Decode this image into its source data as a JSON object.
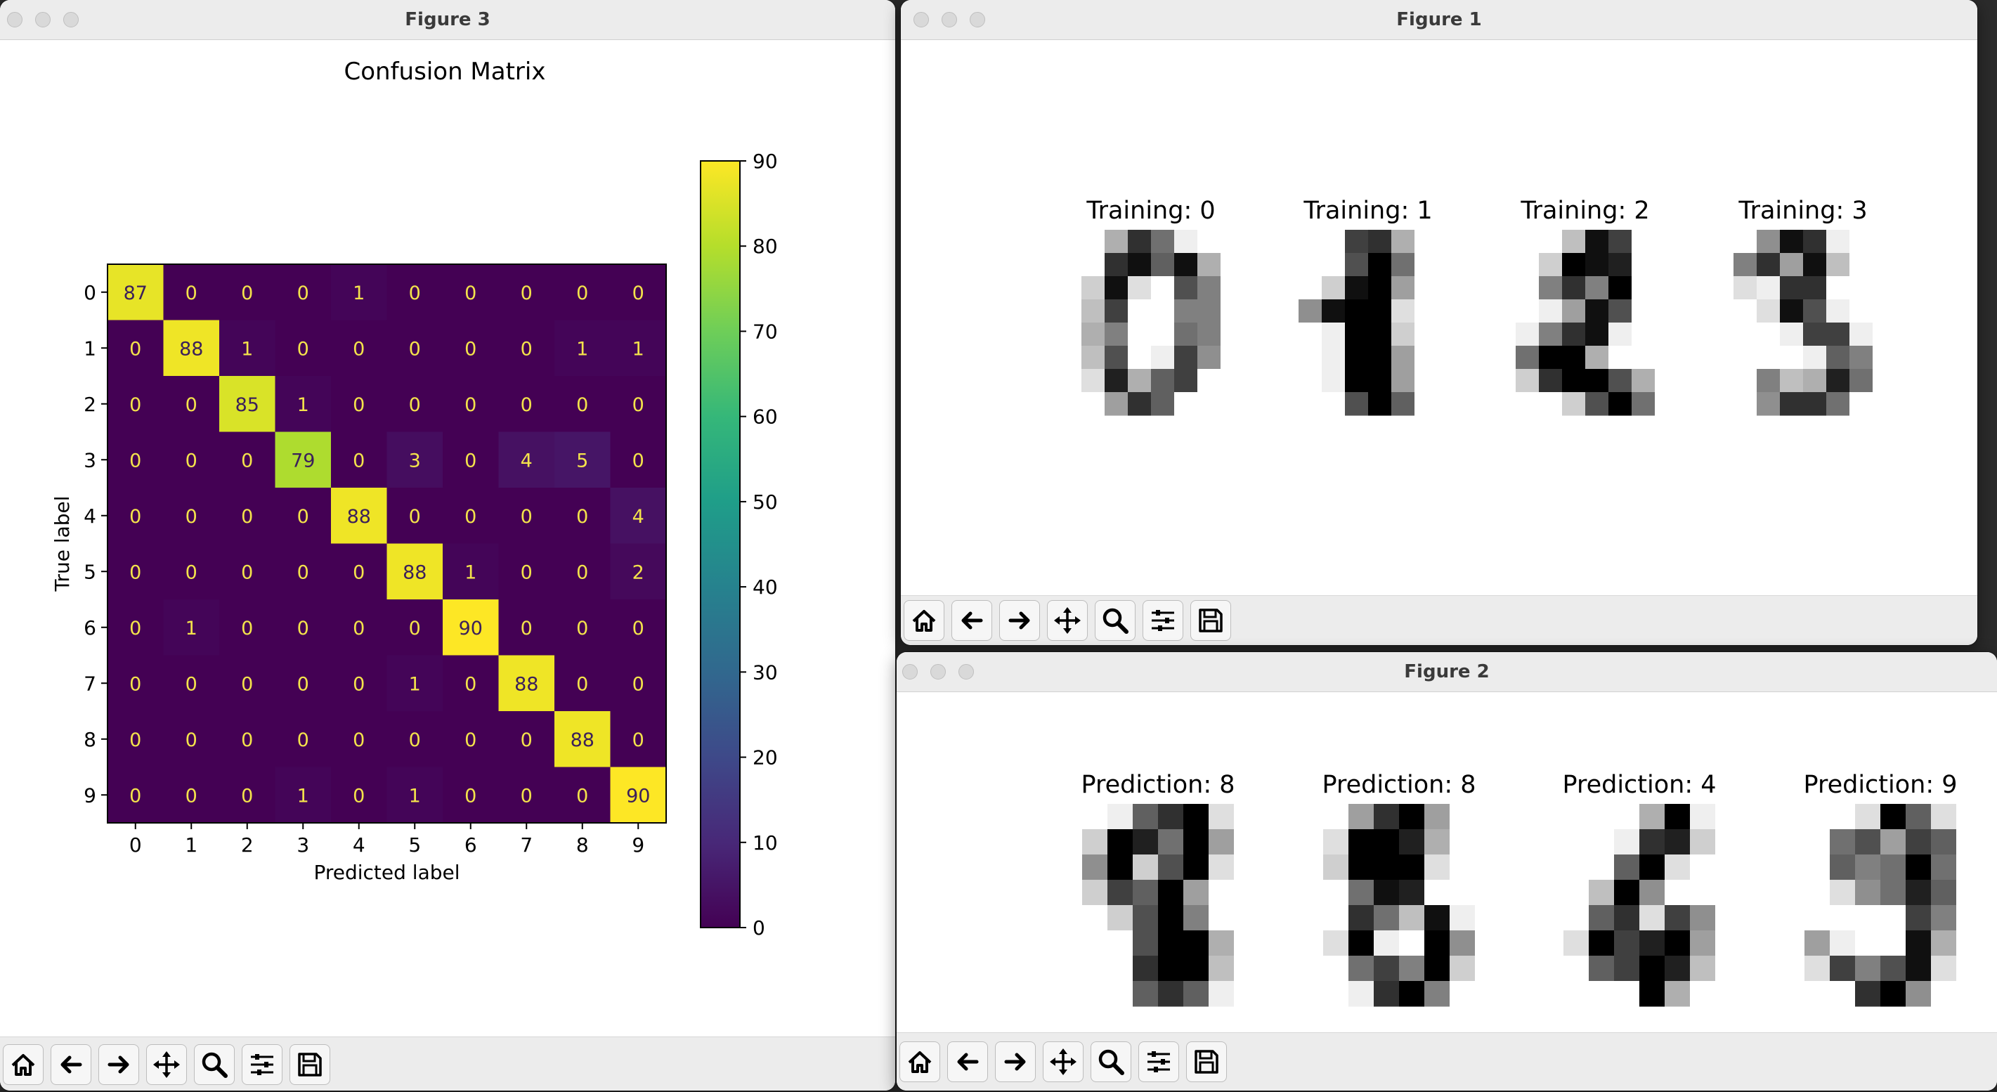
{
  "windows": {
    "fig3": {
      "title": "Figure 3"
    },
    "fig1": {
      "title": "Figure 1"
    },
    "fig2": {
      "title": "Figure 2"
    }
  },
  "toolbar_icons": [
    "home-icon",
    "back-arrow-icon",
    "forward-arrow-icon",
    "pan-move-icon",
    "zoom-icon",
    "configure-subplots-icon",
    "save-icon"
  ],
  "chart_data": {
    "type": "heatmap",
    "title": "Confusion Matrix",
    "xlabel": "Predicted label",
    "ylabel": "True label",
    "x_ticks": [
      "0",
      "1",
      "2",
      "3",
      "4",
      "5",
      "6",
      "7",
      "8",
      "9"
    ],
    "y_ticks": [
      "0",
      "1",
      "2",
      "3",
      "4",
      "5",
      "6",
      "7",
      "8",
      "9"
    ],
    "values": [
      [
        87,
        0,
        0,
        0,
        1,
        0,
        0,
        0,
        0,
        0
      ],
      [
        0,
        88,
        1,
        0,
        0,
        0,
        0,
        0,
        1,
        1
      ],
      [
        0,
        0,
        85,
        1,
        0,
        0,
        0,
        0,
        0,
        0
      ],
      [
        0,
        0,
        0,
        79,
        0,
        3,
        0,
        4,
        5,
        0
      ],
      [
        0,
        0,
        0,
        0,
        88,
        0,
        0,
        0,
        0,
        4
      ],
      [
        0,
        0,
        0,
        0,
        0,
        88,
        1,
        0,
        0,
        2
      ],
      [
        0,
        1,
        0,
        0,
        0,
        0,
        90,
        0,
        0,
        0
      ],
      [
        0,
        0,
        0,
        0,
        0,
        1,
        0,
        88,
        0,
        0
      ],
      [
        0,
        0,
        0,
        0,
        0,
        0,
        0,
        0,
        88,
        0
      ],
      [
        0,
        0,
        0,
        1,
        0,
        1,
        0,
        0,
        0,
        90
      ]
    ],
    "colormap": "viridis",
    "colorbar": {
      "min": 0,
      "max": 90,
      "ticks": [
        "0",
        "10",
        "20",
        "30",
        "40",
        "50",
        "60",
        "70",
        "80",
        "90"
      ]
    }
  },
  "training": {
    "panels": [
      {
        "title": "Training: 0",
        "pixels": [
          [
            0,
            0,
            5,
            13,
            9,
            1,
            0,
            0
          ],
          [
            0,
            0,
            13,
            15,
            10,
            15,
            5,
            0
          ],
          [
            0,
            3,
            15,
            2,
            0,
            11,
            8,
            0
          ],
          [
            0,
            4,
            12,
            0,
            0,
            8,
            8,
            0
          ],
          [
            0,
            5,
            8,
            0,
            0,
            9,
            8,
            0
          ],
          [
            0,
            4,
            11,
            0,
            1,
            12,
            7,
            0
          ],
          [
            0,
            2,
            14,
            5,
            10,
            12,
            0,
            0
          ],
          [
            0,
            0,
            6,
            13,
            10,
            0,
            0,
            0
          ]
        ]
      },
      {
        "title": "Training: 1",
        "pixels": [
          [
            0,
            0,
            0,
            12,
            13,
            5,
            0,
            0
          ],
          [
            0,
            0,
            0,
            11,
            16,
            9,
            0,
            0
          ],
          [
            0,
            0,
            3,
            15,
            16,
            6,
            0,
            0
          ],
          [
            0,
            7,
            15,
            16,
            16,
            2,
            0,
            0
          ],
          [
            0,
            0,
            1,
            16,
            16,
            3,
            0,
            0
          ],
          [
            0,
            0,
            1,
            16,
            16,
            6,
            0,
            0
          ],
          [
            0,
            0,
            1,
            16,
            16,
            6,
            0,
            0
          ],
          [
            0,
            0,
            0,
            11,
            16,
            10,
            0,
            0
          ]
        ]
      },
      {
        "title": "Training: 2",
        "pixels": [
          [
            0,
            0,
            0,
            4,
            15,
            12,
            0,
            0
          ],
          [
            0,
            0,
            3,
            16,
            15,
            14,
            0,
            0
          ],
          [
            0,
            0,
            8,
            13,
            8,
            16,
            0,
            0
          ],
          [
            0,
            0,
            1,
            6,
            15,
            11,
            0,
            0
          ],
          [
            0,
            1,
            8,
            13,
            15,
            1,
            0,
            0
          ],
          [
            0,
            9,
            16,
            16,
            5,
            0,
            0,
            0
          ],
          [
            0,
            3,
            13,
            16,
            16,
            11,
            5,
            0
          ],
          [
            0,
            0,
            0,
            3,
            11,
            16,
            9,
            0
          ]
        ]
      },
      {
        "title": "Training: 3",
        "pixels": [
          [
            0,
            0,
            7,
            15,
            13,
            1,
            0,
            0
          ],
          [
            0,
            8,
            13,
            6,
            15,
            4,
            0,
            0
          ],
          [
            0,
            2,
            1,
            13,
            13,
            0,
            0,
            0
          ],
          [
            0,
            0,
            2,
            15,
            11,
            1,
            0,
            0
          ],
          [
            0,
            0,
            0,
            1,
            12,
            12,
            1,
            0
          ],
          [
            0,
            0,
            0,
            0,
            1,
            10,
            8,
            0
          ],
          [
            0,
            0,
            8,
            4,
            5,
            14,
            9,
            0
          ],
          [
            0,
            0,
            7,
            13,
            13,
            9,
            0,
            0
          ]
        ]
      }
    ]
  },
  "prediction": {
    "panels": [
      {
        "title": "Prediction: 8",
        "pixels": [
          [
            0,
            0,
            1,
            10,
            13,
            16,
            2,
            0
          ],
          [
            0,
            3,
            16,
            14,
            9,
            16,
            6,
            0
          ],
          [
            0,
            7,
            16,
            3,
            11,
            16,
            2,
            0
          ],
          [
            0,
            3,
            12,
            10,
            16,
            6,
            0,
            0
          ],
          [
            0,
            0,
            3,
            11,
            16,
            8,
            0,
            0
          ],
          [
            0,
            0,
            0,
            11,
            16,
            16,
            5,
            0
          ],
          [
            0,
            0,
            0,
            13,
            16,
            16,
            4,
            0
          ],
          [
            0,
            0,
            0,
            10,
            13,
            10,
            1,
            0
          ]
        ]
      },
      {
        "title": "Prediction: 8",
        "pixels": [
          [
            0,
            0,
            6,
            13,
            16,
            6,
            0,
            0
          ],
          [
            0,
            2,
            16,
            16,
            14,
            5,
            0,
            0
          ],
          [
            0,
            3,
            16,
            16,
            16,
            2,
            0,
            0
          ],
          [
            0,
            0,
            9,
            15,
            14,
            0,
            0,
            0
          ],
          [
            0,
            0,
            13,
            9,
            4,
            15,
            1,
            0
          ],
          [
            0,
            2,
            16,
            1,
            0,
            16,
            7,
            0
          ],
          [
            0,
            0,
            9,
            12,
            8,
            16,
            3,
            0
          ],
          [
            0,
            0,
            1,
            13,
            16,
            8,
            0,
            0
          ]
        ]
      },
      {
        "title": "Prediction: 4",
        "pixels": [
          [
            0,
            0,
            0,
            0,
            5,
            16,
            1,
            0
          ],
          [
            0,
            0,
            0,
            1,
            13,
            14,
            3,
            0
          ],
          [
            0,
            0,
            0,
            10,
            16,
            2,
            0,
            0
          ],
          [
            0,
            0,
            4,
            16,
            7,
            0,
            0,
            0
          ],
          [
            0,
            0,
            10,
            13,
            2,
            12,
            7,
            0
          ],
          [
            0,
            2,
            16,
            12,
            14,
            16,
            6,
            0
          ],
          [
            0,
            0,
            10,
            12,
            16,
            14,
            4,
            0
          ],
          [
            0,
            0,
            0,
            0,
            16,
            5,
            0,
            0
          ]
        ]
      },
      {
        "title": "Prediction: 9",
        "pixels": [
          [
            0,
            0,
            0,
            2,
            16,
            10,
            2,
            0
          ],
          [
            0,
            0,
            9,
            11,
            6,
            12,
            10,
            0
          ],
          [
            0,
            0,
            10,
            8,
            9,
            16,
            9,
            0
          ],
          [
            0,
            0,
            2,
            7,
            9,
            14,
            10,
            0
          ],
          [
            0,
            0,
            0,
            0,
            0,
            12,
            8,
            0
          ],
          [
            0,
            6,
            1,
            0,
            0,
            15,
            5,
            0
          ],
          [
            0,
            2,
            12,
            8,
            11,
            15,
            2,
            0
          ],
          [
            0,
            0,
            0,
            13,
            16,
            7,
            0,
            0
          ]
        ]
      }
    ]
  }
}
